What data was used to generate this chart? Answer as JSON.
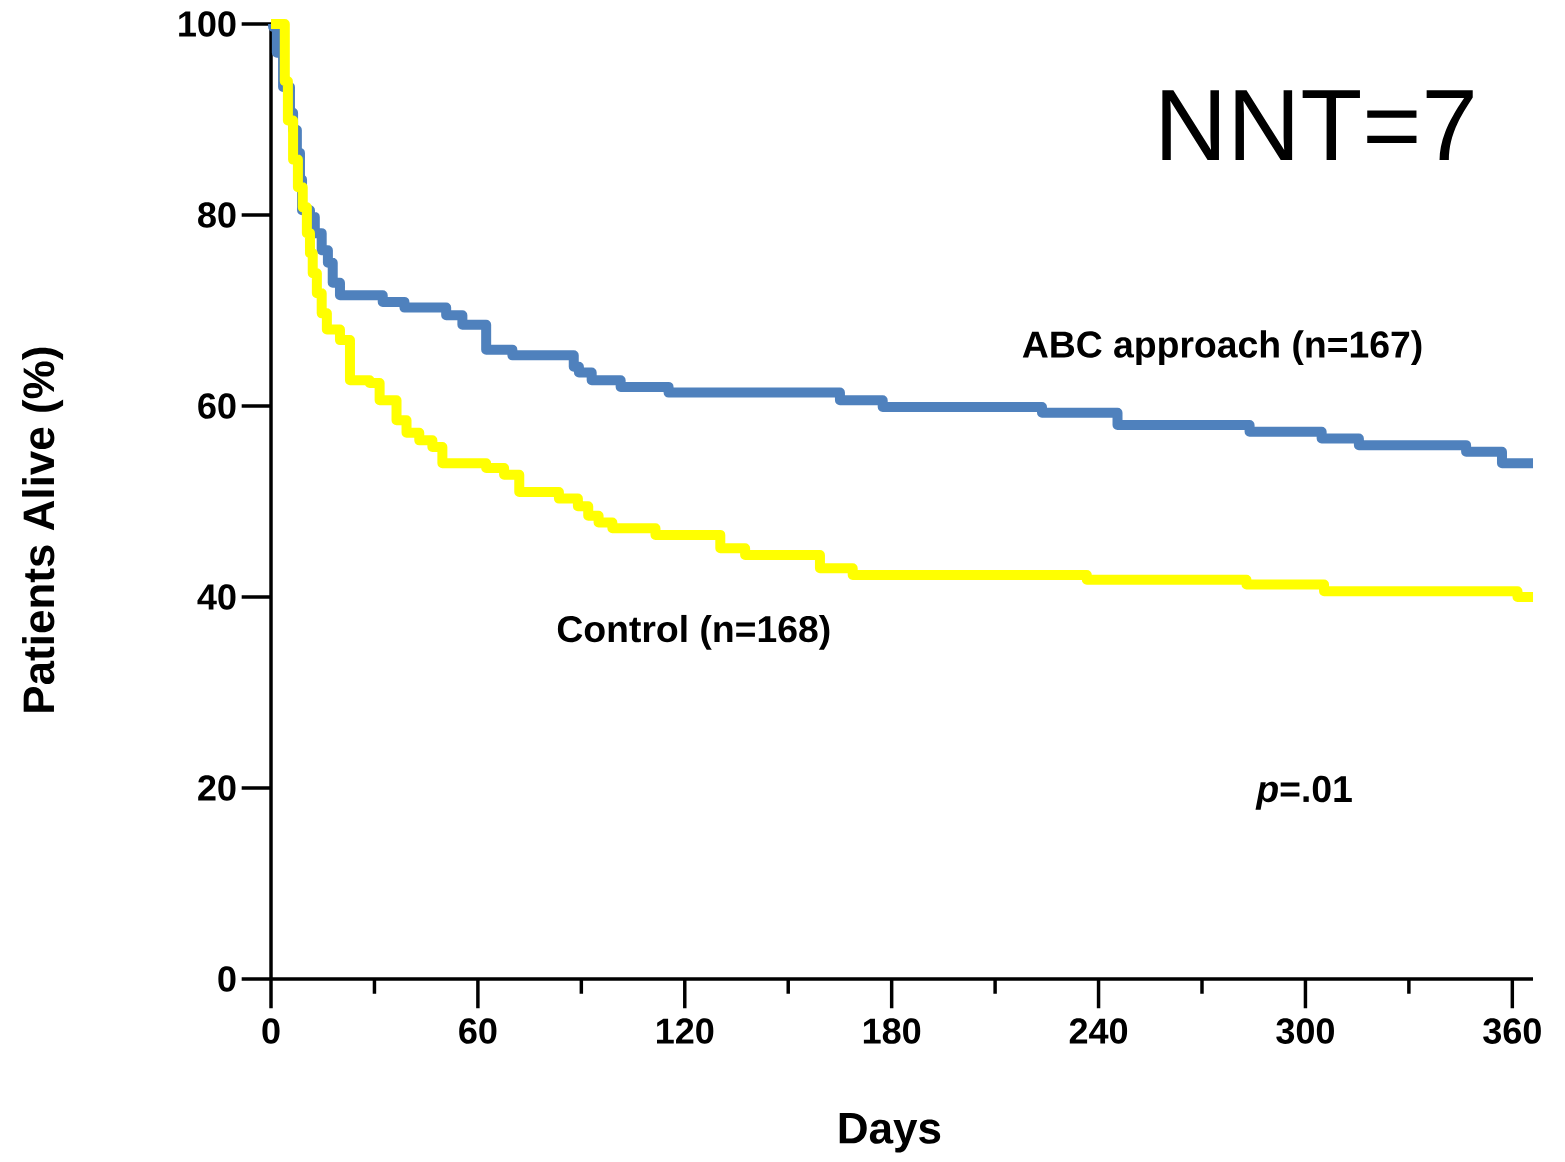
{
  "chart_data": {
    "type": "step",
    "xlabel": "Days",
    "ylabel": "Patients Alive (%)",
    "xlim": [
      0,
      366
    ],
    "ylim": [
      0,
      100
    ],
    "xticks": [
      0,
      {
        "value": 30,
        "label": null
      },
      60,
      {
        "value": 90,
        "label": null
      },
      120,
      {
        "value": 150,
        "label": null
      },
      180,
      {
        "value": 210,
        "label": null
      },
      240,
      {
        "value": 270,
        "label": null
      },
      300,
      {
        "value": 330,
        "label": null
      },
      360
    ],
    "yticks": [
      0,
      20,
      40,
      60,
      80,
      100
    ],
    "annotations": [
      "NNT=7",
      "*p*=.01"
    ],
    "series": [
      {
        "name": "ABC approach (n=167)",
        "color": "#4f81bd",
        "x": [
          0,
          0.6,
          1.7,
          3.5,
          5.5,
          6.4,
          7.5,
          8.4,
          9,
          11.3,
          12.7,
          14.7,
          16.5,
          17.9,
          20,
          32.4,
          38.7,
          50.8,
          55.5,
          62.4,
          70,
          87.8,
          89.3,
          93,
          101.4,
          115.3,
          165,
          177.4,
          223.6,
          245.5,
          283.8,
          304.7,
          315.5,
          346.6,
          357,
          366
        ],
        "values": [
          100,
          99.7,
          97,
          93.4,
          90.7,
          88.9,
          86.5,
          83.7,
          80.5,
          79.8,
          78.1,
          76.3,
          75,
          72.9,
          71.6,
          70.9,
          70.3,
          69.5,
          68.5,
          65.9,
          65.3,
          64.1,
          63.5,
          62.7,
          62,
          61.4,
          60.6,
          59.9,
          59.3,
          58,
          57.3,
          56.6,
          55.9,
          55.2,
          54,
          54
        ]
      },
      {
        "name": "Control (n=168)",
        "color": "#ffff00",
        "x": [
          0,
          4,
          4.9,
          6.4,
          7.8,
          9.2,
          10.4,
          11.3,
          12.1,
          13.3,
          14.7,
          16.2,
          20,
          22.9,
          28.6,
          31.5,
          36.4,
          39.3,
          43,
          46.8,
          49.7,
          62.4,
          67.6,
          72,
          83.5,
          89,
          92,
          95,
          99,
          111.5,
          130.3,
          137.5,
          159.2,
          168.7,
          236.6,
          282.9,
          305.4,
          361.5,
          366
        ],
        "values": [
          100,
          94,
          89.9,
          85.8,
          82.9,
          80.8,
          78.1,
          76,
          73.9,
          71.8,
          69.7,
          68,
          66.9,
          62.7,
          62.4,
          60.6,
          58.5,
          57.2,
          56.4,
          55.7,
          54,
          53.5,
          52.8,
          51,
          50.3,
          49.5,
          48.5,
          47.8,
          47.2,
          46.5,
          45.1,
          44.4,
          43,
          42.3,
          41.8,
          41.3,
          40.6,
          40,
          40
        ]
      }
    ]
  }
}
